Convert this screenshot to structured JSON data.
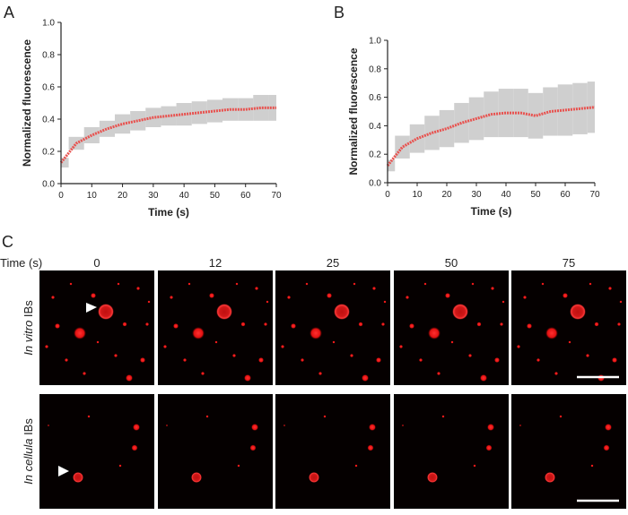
{
  "panel_labels": [
    "A",
    "B",
    "C"
  ],
  "chart_data": [
    {
      "type": "line",
      "xlabel": "Time (s)",
      "ylabel": "Normalized fluorescence",
      "x": [
        0,
        5,
        10,
        15,
        20,
        25,
        30,
        35,
        40,
        45,
        50,
        55,
        60,
        65,
        70
      ],
      "xlim": [
        0,
        70
      ],
      "xticks": [
        0,
        10,
        20,
        30,
        40,
        50,
        60,
        70
      ],
      "ylim": [
        0,
        1
      ],
      "yticks": [
        {
          "value": 0,
          "label": "0.0"
        },
        0.2,
        0.4,
        0.6,
        0.8,
        {
          "value": 1,
          "label": "1.0"
        }
      ],
      "series": [
        {
          "color": "#e8524f",
          "error_color": "#cfcfcf",
          "values": [
            0.13,
            0.25,
            0.3,
            0.34,
            0.37,
            0.39,
            0.41,
            0.42,
            0.43,
            0.44,
            0.45,
            0.46,
            0.46,
            0.47,
            0.47
          ],
          "errors": [
            0.03,
            0.04,
            0.05,
            0.05,
            0.06,
            0.06,
            0.06,
            0.06,
            0.07,
            0.07,
            0.07,
            0.07,
            0.07,
            0.08,
            0.08
          ]
        }
      ]
    },
    {
      "type": "line",
      "xlabel": "Time (s)",
      "ylabel": "Normalized fluorescence",
      "x": [
        0,
        5,
        10,
        15,
        20,
        25,
        30,
        35,
        40,
        45,
        50,
        55,
        60,
        65,
        70
      ],
      "xlim": [
        0,
        70
      ],
      "xticks": [
        0,
        10,
        20,
        30,
        40,
        50,
        60,
        70
      ],
      "ylim": [
        0,
        1
      ],
      "yticks": [
        {
          "value": 0,
          "label": "0.0"
        },
        0.2,
        0.4,
        0.6,
        0.8,
        {
          "value": 1,
          "label": "1.0"
        }
      ],
      "series": [
        {
          "color": "#e8524f",
          "error_color": "#cfcfcf",
          "values": [
            0.12,
            0.25,
            0.31,
            0.35,
            0.38,
            0.42,
            0.45,
            0.48,
            0.49,
            0.49,
            0.47,
            0.5,
            0.51,
            0.52,
            0.53
          ],
          "errors": [
            0.04,
            0.08,
            0.1,
            0.12,
            0.13,
            0.14,
            0.15,
            0.16,
            0.17,
            0.17,
            0.16,
            0.17,
            0.18,
            0.18,
            0.18
          ]
        }
      ]
    }
  ],
  "microscopy": {
    "time_label": "Time (s)",
    "times": [
      "0",
      "12",
      "25",
      "50",
      "75"
    ],
    "rows": [
      {
        "italic": "In vitro",
        "rest": " IBs"
      },
      {
        "italic": "In cellula",
        "rest": " IBs"
      }
    ]
  }
}
